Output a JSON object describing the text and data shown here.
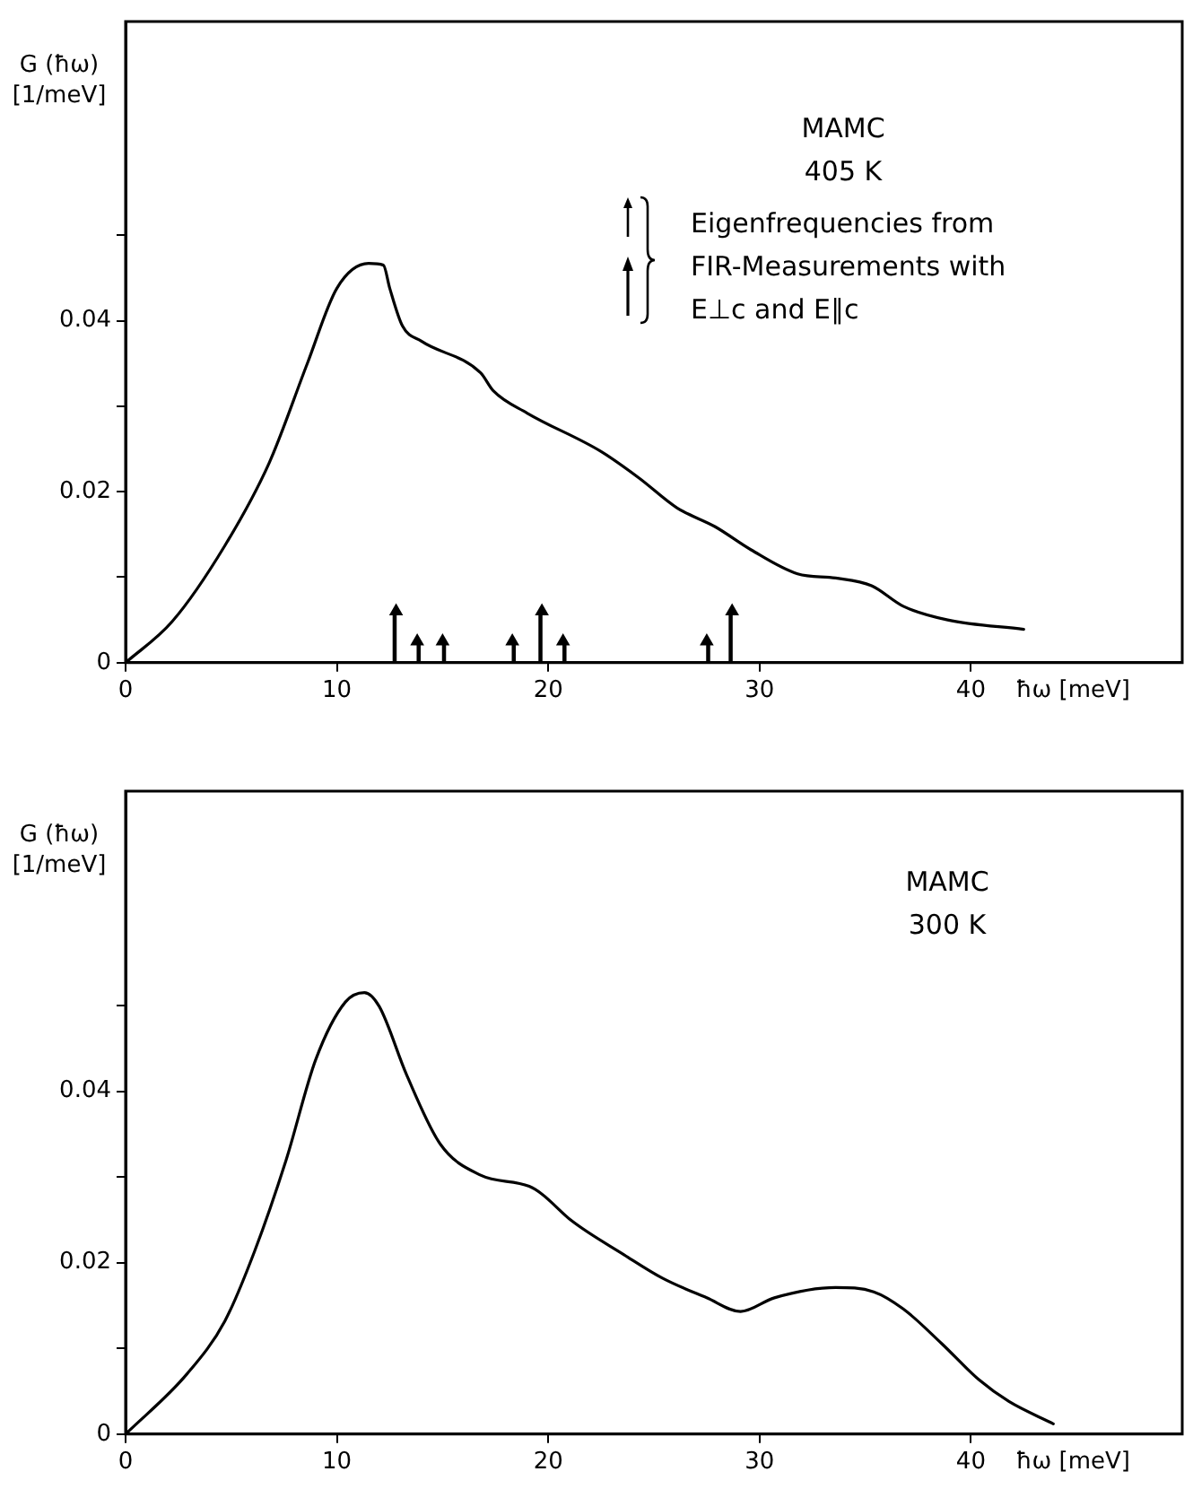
{
  "chart_data": [
    {
      "type": "line",
      "xlabel": "ħω [meV]",
      "ylabel": "G (ħω)\n[1/meV]",
      "annotations": [
        "MAMC\n405 K",
        "Eigenfrequencies from\nFIR-Measurements with\nE⊥c and E∥c"
      ],
      "xlim": [
        0,
        50
      ],
      "ylim": [
        0,
        0.075
      ],
      "xticks": [
        0,
        10,
        20,
        30,
        40
      ],
      "yticks": [
        0,
        {
          "value": 0.01,
          "label": null
        },
        0.02,
        {
          "value": 0.03,
          "label": null
        },
        0.04,
        {
          "value": 0.05,
          "label": null
        }
      ],
      "series": [
        {
          "type": "line",
          "color": "#000000",
          "x": [
            0,
            2.2,
            4.7,
            6.8,
            8.6,
            10.0,
            11.5,
            12.2,
            12.5,
            13.1,
            14.0,
            16.8,
            17.4,
            19.0,
            22.5,
            24.3,
            26.1,
            27.9,
            29.6,
            31.8,
            33.6,
            35.3,
            36.8,
            38.9,
            42.5
          ],
          "values": [
            0,
            0.0048,
            0.0137,
            0.0234,
            0.035,
            0.0438,
            0.0467,
            0.0465,
            0.0438,
            0.0394,
            0.0376,
            0.0339,
            0.0318,
            0.0292,
            0.0247,
            0.0216,
            0.0181,
            0.0159,
            0.0132,
            0.0104,
            0.0099,
            0.009,
            0.0066,
            0.005,
            0.0039
          ]
        },
        {
          "type": "lollipop",
          "color": "#000000",
          "marker": "triangle",
          "x": [
            12.8,
            19.7,
            28.7
          ],
          "values": [
            0.006,
            0.006,
            0.006
          ]
        },
        {
          "type": "lollipop",
          "color": "#000000",
          "marker": "triangle",
          "x": [
            13.8,
            15.0,
            18.3,
            20.7,
            27.5
          ],
          "values": [
            0.0025,
            0.0025,
            0.0025,
            0.0025,
            0.0025
          ]
        }
      ]
    },
    {
      "type": "line",
      "xlabel": "ħω [meV]",
      "ylabel": "G (ħω)\n[1/meV]",
      "annotations": [
        "MAMC\n300 K"
      ],
      "xlim": [
        0,
        50
      ],
      "ylim": [
        0,
        0.075
      ],
      "xticks": [
        0,
        10,
        20,
        30,
        40
      ],
      "yticks": [
        0,
        {
          "value": 0.01,
          "label": null
        },
        0.02,
        {
          "value": 0.03,
          "label": null
        },
        0.04,
        {
          "value": 0.05,
          "label": null
        }
      ],
      "series": [
        {
          "type": "line",
          "color": "#000000",
          "x": [
            0,
            2.9,
            4.7,
            6.1,
            7.6,
            9.0,
            10.4,
            11.3,
            12.0,
            13.3,
            14.9,
            16.8,
            19.1,
            19.7,
            21.1,
            23.6,
            25.4,
            27.5,
            29.1,
            30.7,
            33.6,
            35.4,
            36.8,
            38.6,
            40.4,
            41.8,
            43.9
          ],
          "values": [
            0,
            0.007,
            0.0132,
            0.0213,
            0.032,
            0.0437,
            0.0504,
            0.0515,
            0.0499,
            0.0419,
            0.0338,
            0.0302,
            0.0289,
            0.028,
            0.0249,
            0.0209,
            0.0182,
            0.0159,
            0.0143,
            0.0159,
            0.0171,
            0.0166,
            0.0146,
            0.0106,
            0.0063,
            0.0038,
            0.0012
          ]
        }
      ]
    }
  ]
}
